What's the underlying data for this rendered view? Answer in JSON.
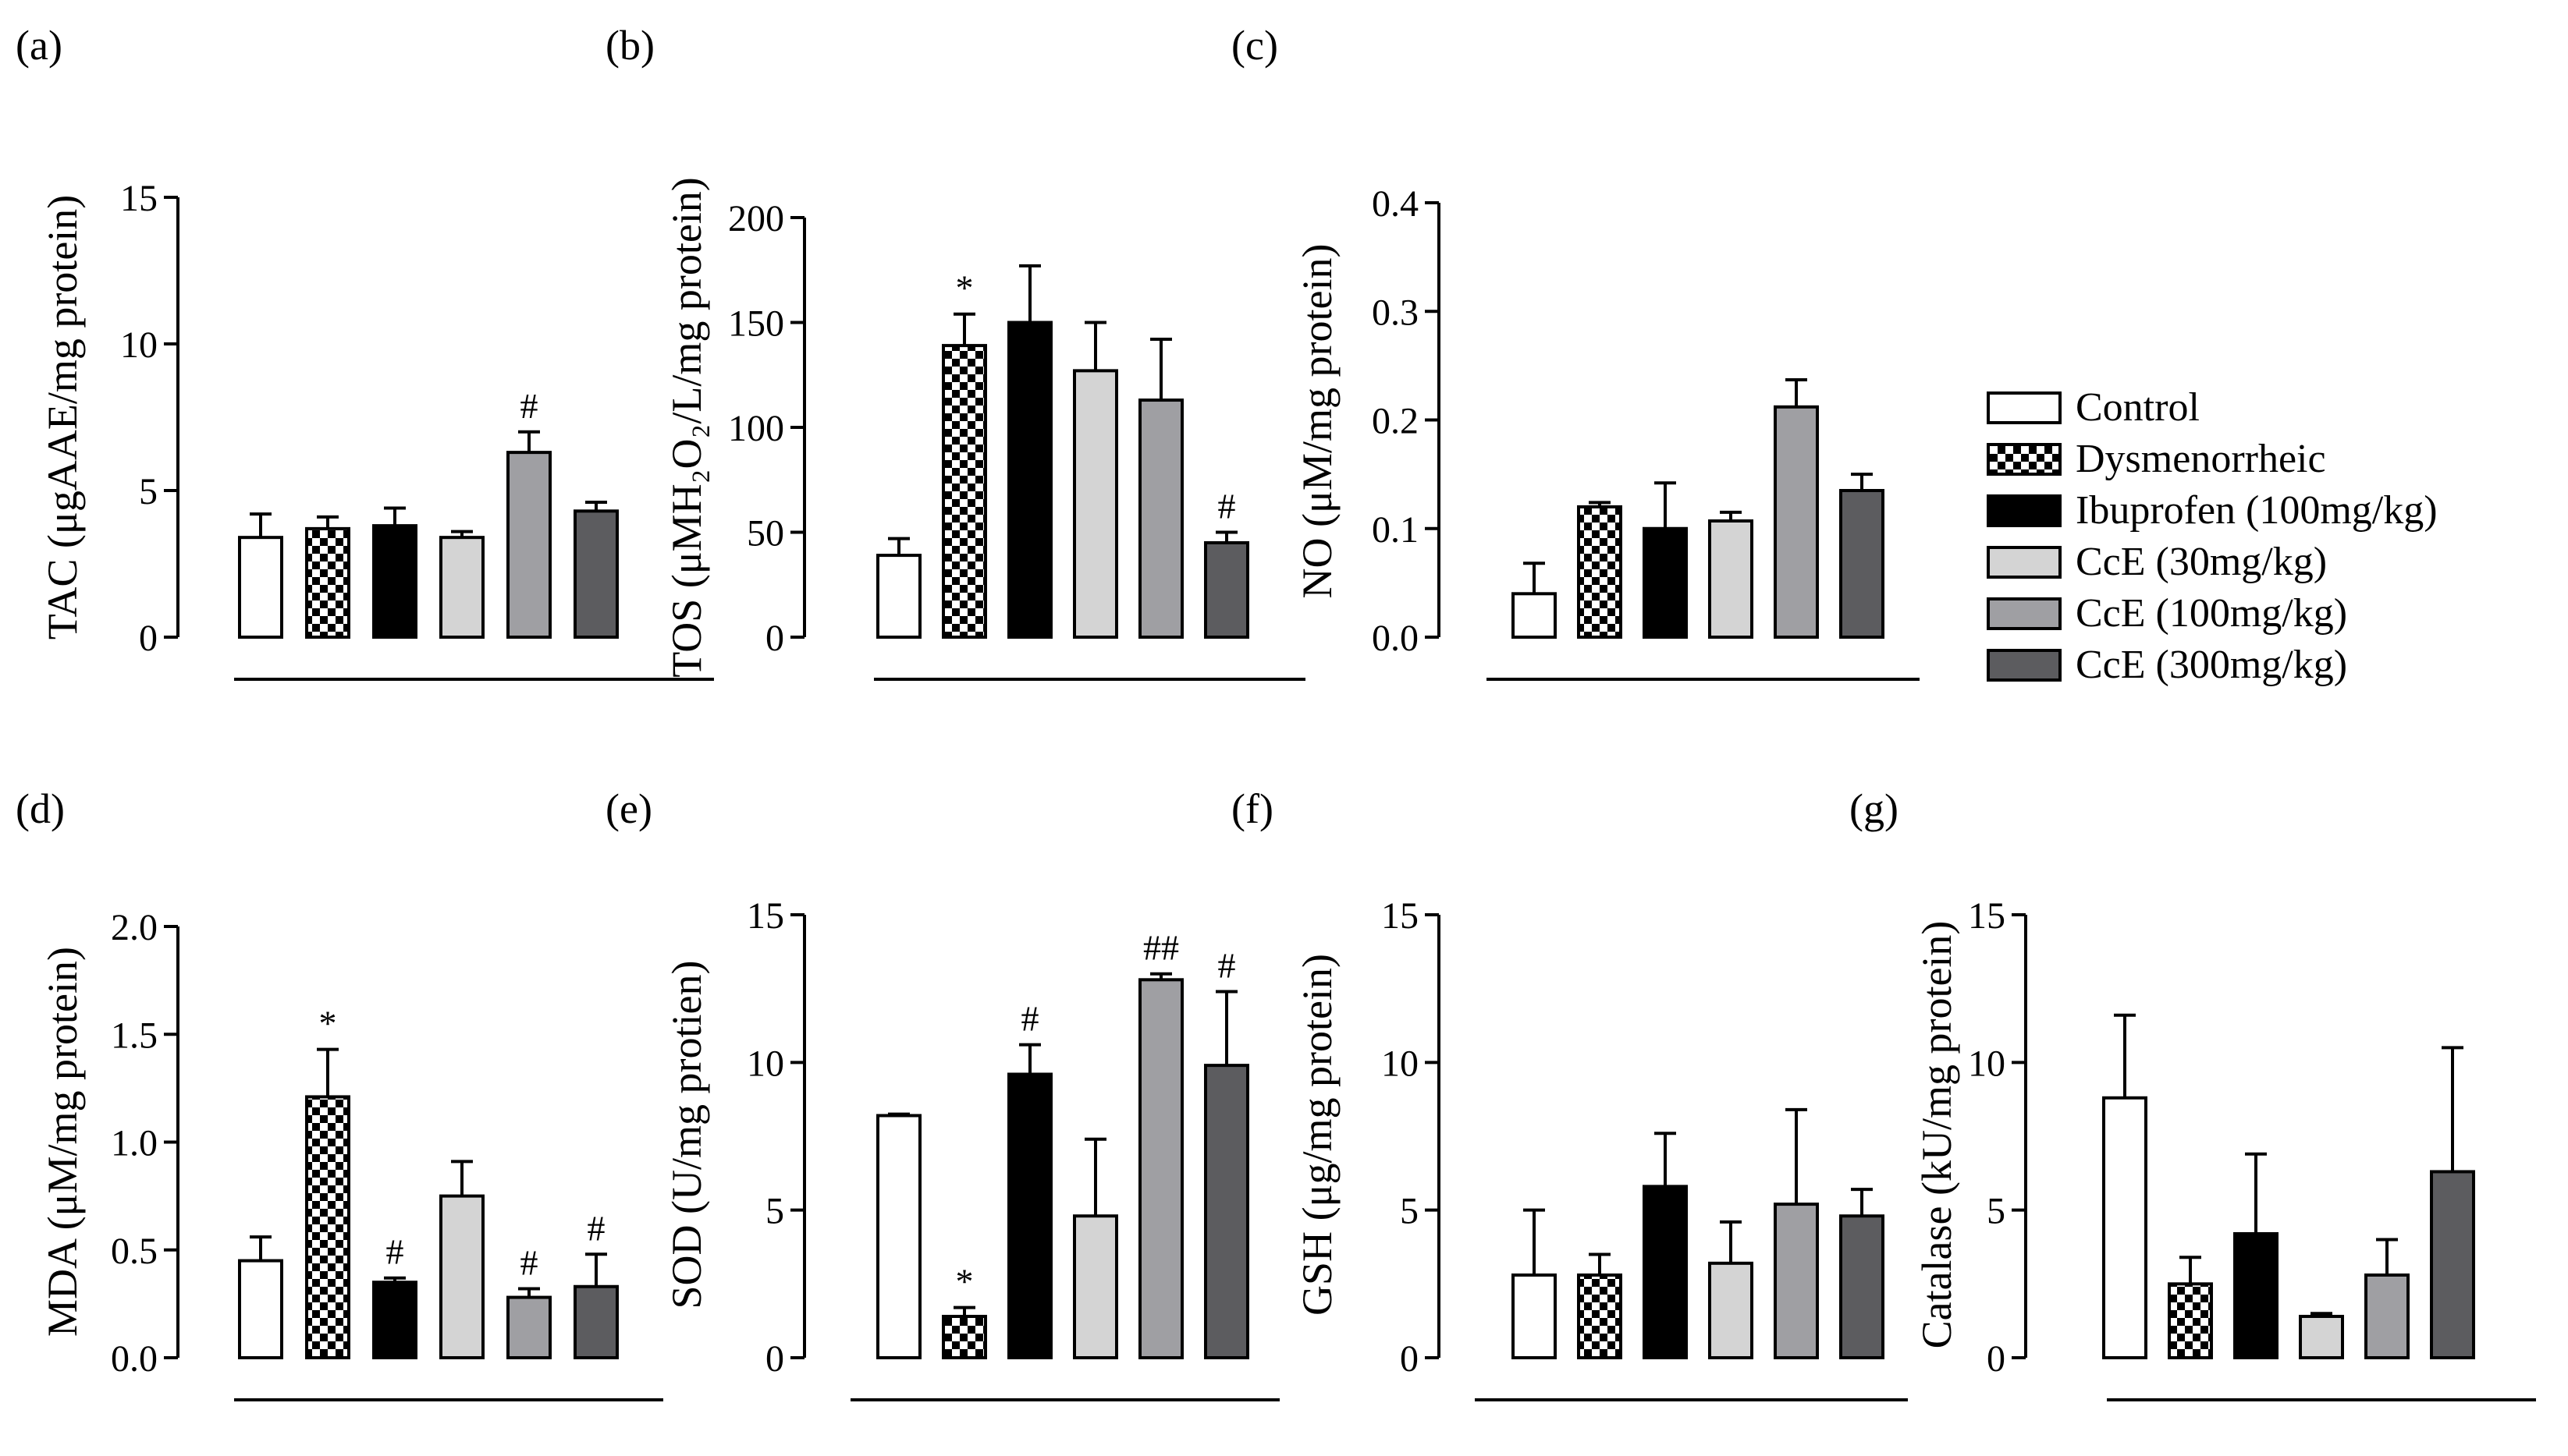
{
  "groups": [
    {
      "name": "Control",
      "fill": "#ffffff"
    },
    {
      "name": "Dysmenorrheic",
      "fill": "checker"
    },
    {
      "name": "Ibuprofen (100mg/kg)",
      "fill": "#000000"
    },
    {
      "name": "CcE (30mg/kg)",
      "fill": "#d4d4d4"
    },
    {
      "name": "CcE (100mg/kg)",
      "fill": "#9f9fa3"
    },
    {
      "name": "CcE (300mg/kg)",
      "fill": "#5c5c5f"
    }
  ],
  "chart_data": [
    {
      "type": "bar",
      "panel": "(a)",
      "ylabel": "TAC (μgAAE/mg protein)",
      "ylim": [
        0,
        15
      ],
      "ticks": [
        0,
        5,
        10,
        15
      ],
      "tick_labels": [
        "0",
        "5",
        "10",
        "15"
      ],
      "categories": [
        "Control",
        "Dysmenorrheic",
        "Ibuprofen (100mg/kg)",
        "CcE (30mg/kg)",
        "CcE (100mg/kg)",
        "CcE (300mg/kg)"
      ],
      "values": [
        3.4,
        3.7,
        3.8,
        3.4,
        6.3,
        4.3
      ],
      "errors": [
        0.8,
        0.4,
        0.6,
        0.2,
        0.7,
        0.3
      ],
      "annotations": [
        "",
        "",
        "",
        "",
        "#",
        ""
      ]
    },
    {
      "type": "bar",
      "panel": "(b)",
      "ylabel": "TOS (μMH₂O₂/L/mg protein)",
      "ylim": [
        0,
        200
      ],
      "ticks": [
        0,
        50,
        100,
        150,
        200
      ],
      "tick_labels": [
        "0",
        "50",
        "100",
        "150",
        "200"
      ],
      "categories": [
        "Control",
        "Dysmenorrheic",
        "Ibuprofen (100mg/kg)",
        "CcE (30mg/kg)",
        "CcE (100mg/kg)",
        "CcE (300mg/kg)"
      ],
      "values": [
        39,
        139,
        150,
        127,
        113,
        45
      ],
      "errors": [
        8,
        15,
        27,
        23,
        29,
        5
      ],
      "annotations": [
        "",
        "*",
        "",
        "",
        "",
        "#"
      ]
    },
    {
      "type": "bar",
      "panel": "(c)",
      "ylabel": "NO (μM/mg protein)",
      "ylim": [
        0,
        0.4
      ],
      "ticks": [
        0,
        0.1,
        0.2,
        0.3,
        0.4
      ],
      "tick_labels": [
        "0.0",
        "0.1",
        "0.2",
        "0.3",
        "0.4"
      ],
      "categories": [
        "Control",
        "Dysmenorrheic",
        "Ibuprofen (100mg/kg)",
        "CcE (30mg/kg)",
        "CcE (100mg/kg)",
        "CcE (300mg/kg)"
      ],
      "values": [
        0.04,
        0.12,
        0.1,
        0.107,
        0.212,
        0.135
      ],
      "errors": [
        0.028,
        0.004,
        0.042,
        0.008,
        0.025,
        0.015
      ],
      "annotations": [
        "",
        "",
        "",
        "",
        "",
        ""
      ]
    },
    {
      "type": "bar",
      "panel": "(d)",
      "ylabel": "MDA (μM/mg protein)",
      "ylim": [
        0,
        2.0
      ],
      "ticks": [
        0,
        0.5,
        1.0,
        1.5,
        2.0
      ],
      "tick_labels": [
        "0.0",
        "0.5",
        "1.0",
        "1.5",
        "2.0"
      ],
      "categories": [
        "Control",
        "Dysmenorrheic",
        "Ibuprofen (100mg/kg)",
        "CcE (30mg/kg)",
        "CcE (100mg/kg)",
        "CcE (300mg/kg)"
      ],
      "values": [
        0.45,
        1.21,
        0.35,
        0.75,
        0.28,
        0.33
      ],
      "errors": [
        0.11,
        0.22,
        0.02,
        0.16,
        0.04,
        0.15
      ],
      "annotations": [
        "",
        "*",
        "#",
        "",
        "#",
        "#"
      ]
    },
    {
      "type": "bar",
      "panel": "(e)",
      "ylabel": "SOD (U/mg protien)",
      "ylim": [
        0,
        15
      ],
      "ticks": [
        0,
        5,
        10,
        15
      ],
      "tick_labels": [
        "0",
        "5",
        "10",
        "15"
      ],
      "categories": [
        "Control",
        "Dysmenorrheic",
        "Ibuprofen (100mg/kg)",
        "CcE (30mg/kg)",
        "CcE (100mg/kg)",
        "CcE (300mg/kg)"
      ],
      "values": [
        8.2,
        1.4,
        9.6,
        4.8,
        12.8,
        9.9
      ],
      "errors": [
        0.05,
        0.3,
        1.0,
        2.6,
        0.2,
        2.5
      ],
      "annotations": [
        "",
        "*",
        "#",
        "",
        "##",
        "#"
      ]
    },
    {
      "type": "bar",
      "panel": "(f)",
      "ylabel": "GSH (μg/mg protein)",
      "ylim": [
        0,
        15
      ],
      "ticks": [
        0,
        5,
        10,
        15
      ],
      "tick_labels": [
        "0",
        "5",
        "10",
        "15"
      ],
      "categories": [
        "Control",
        "Dysmenorrheic",
        "Ibuprofen (100mg/kg)",
        "CcE (30mg/kg)",
        "CcE (100mg/kg)",
        "CcE (300mg/kg)"
      ],
      "values": [
        2.8,
        2.8,
        5.8,
        3.2,
        5.2,
        4.8
      ],
      "errors": [
        2.2,
        0.7,
        1.8,
        1.4,
        3.2,
        0.9
      ],
      "annotations": [
        "",
        "",
        "",
        "",
        "",
        ""
      ]
    },
    {
      "type": "bar",
      "panel": "(g)",
      "ylabel": "Catalase (kU/mg protein)",
      "ylim": [
        0,
        15
      ],
      "ticks": [
        0,
        5,
        10,
        15
      ],
      "tick_labels": [
        "0",
        "5",
        "10",
        "15"
      ],
      "categories": [
        "Control",
        "Dysmenorrheic",
        "Ibuprofen (100mg/kg)",
        "CcE (30mg/kg)",
        "CcE (100mg/kg)",
        "CcE (300mg/kg)"
      ],
      "values": [
        8.8,
        2.5,
        4.2,
        1.4,
        2.8,
        6.3
      ],
      "errors": [
        2.8,
        0.9,
        2.7,
        0.1,
        1.2,
        4.2
      ],
      "annotations": [
        "",
        "",
        "",
        "",
        "",
        ""
      ]
    }
  ]
}
